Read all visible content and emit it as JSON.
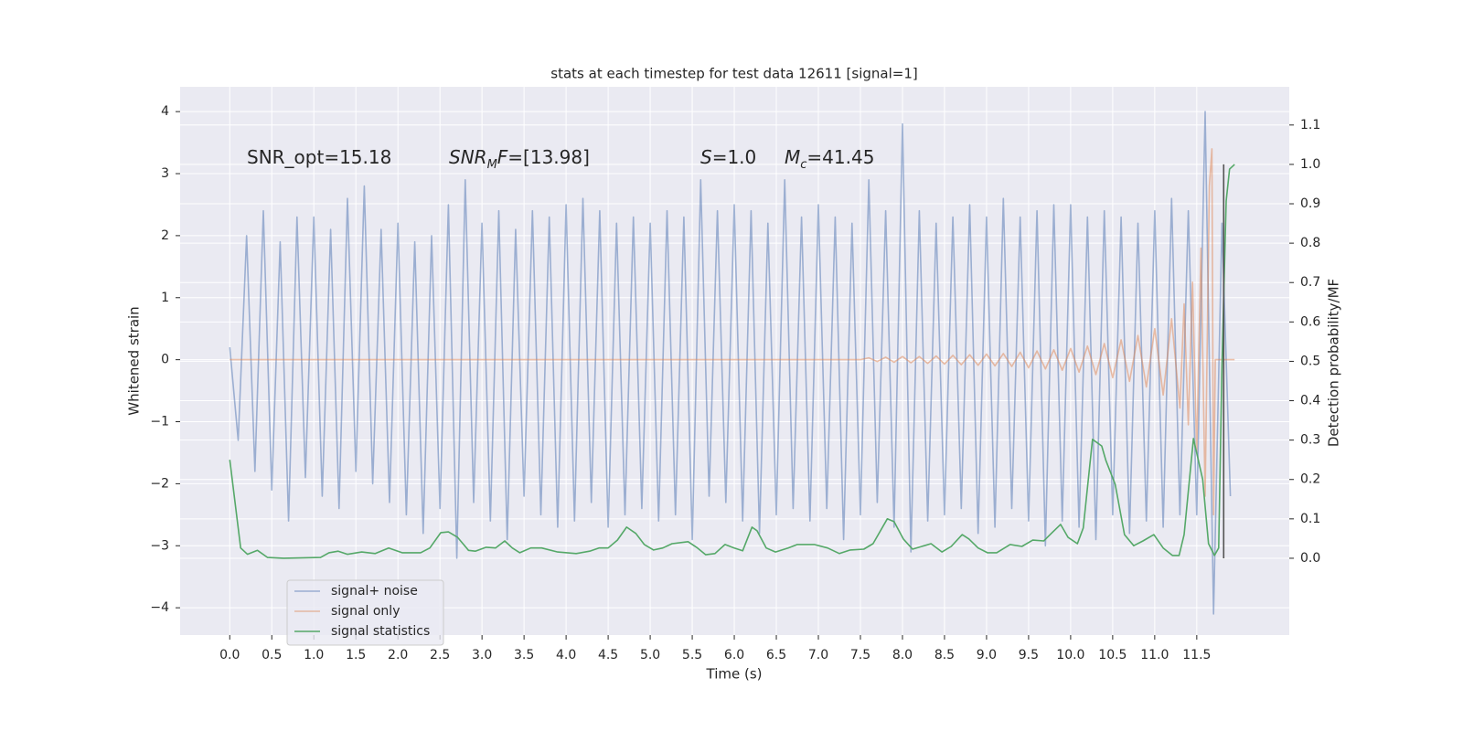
{
  "chart_data": {
    "type": "line",
    "title": "stats at each timestep for test data 12611 [signal=1]",
    "xlabel": "Time (s)",
    "ylabel": "Whitened strain",
    "y2label": "Detection probability/MF",
    "xlim": [
      -0.59,
      12.6
    ],
    "ylim": [
      -4.44,
      4.4
    ],
    "y2lim": [
      -0.195,
      1.197
    ],
    "xticks": [
      {
        "value": 0,
        "label": "0.0"
      },
      0.5,
      {
        "value": 1,
        "label": "1.0"
      },
      1.5,
      {
        "value": 2,
        "label": "2.0"
      },
      2.5,
      {
        "value": 3,
        "label": "3.0"
      },
      3.5,
      {
        "value": 4,
        "label": "4.0"
      },
      4.5,
      {
        "value": 5,
        "label": "5.0"
      },
      5.5,
      {
        "value": 6,
        "label": "6.0"
      },
      6.5,
      {
        "value": 7,
        "label": "7.0"
      },
      7.5,
      {
        "value": 8,
        "label": "8.0"
      },
      8.5,
      {
        "value": 9,
        "label": "9.0"
      },
      9.5,
      {
        "value": 10,
        "label": "10.0"
      },
      10.5,
      {
        "value": 11,
        "label": "11.0"
      },
      11.5
    ],
    "yticks": [
      {
        "value": -4,
        "label": "−4"
      },
      {
        "value": -3,
        "label": "−3"
      },
      {
        "value": -2,
        "label": "−2"
      },
      {
        "value": -1,
        "label": "−1"
      },
      0,
      1,
      2,
      3,
      4
    ],
    "y2ticks": [
      {
        "value": 0,
        "label": "0.0"
      },
      0.1,
      0.2,
      0.3,
      0.4,
      0.5,
      0.6,
      0.7,
      0.8,
      0.9,
      {
        "value": 1,
        "label": "1.0"
      },
      1.1
    ],
    "grid": true,
    "legend": "lower left",
    "annotations": [
      [
        {
          "text": "SNR_opt=15.18"
        }
      ],
      [
        {
          "text": "SNR",
          "italic": true
        },
        {
          "text": "M",
          "italic": true,
          "sub": true
        },
        {
          "text": "F",
          "italic": true
        },
        {
          "text": "=[13.98]"
        }
      ],
      [
        {
          "text": "S",
          "italic": true
        },
        {
          "text": "=1.0"
        }
      ],
      [
        {
          "text": "M",
          "italic": true
        },
        {
          "text": "c",
          "italic": true,
          "sub": true
        },
        {
          "text": "=41.45"
        }
      ]
    ],
    "threshold_line": {
      "x": 11.82,
      "y2": [
        0,
        1.0
      ],
      "color": "#555555"
    },
    "series": [
      {
        "name": "signal+ noise",
        "color": "#4c72b0",
        "opacity": 0.5,
        "x": [
          0,
          0.1,
          0.2,
          0.3,
          0.4,
          0.5,
          0.6,
          0.7,
          0.8,
          0.9,
          1,
          1.1,
          1.2,
          1.3,
          1.4,
          1.5,
          1.6,
          1.7,
          1.8,
          1.9,
          2,
          2.1,
          2.2,
          2.3,
          2.4,
          2.5,
          2.6,
          2.7,
          2.8,
          2.9,
          3,
          3.1,
          3.2,
          3.3,
          3.4,
          3.5,
          3.6,
          3.7,
          3.8,
          3.9,
          4,
          4.1,
          4.2,
          4.3,
          4.4,
          4.5,
          4.6,
          4.7,
          4.8,
          4.9,
          5,
          5.1,
          5.2,
          5.3,
          5.4,
          5.5,
          5.6,
          5.7,
          5.8,
          5.9,
          6,
          6.1,
          6.2,
          6.3,
          6.4,
          6.5,
          6.6,
          6.7,
          6.8,
          6.9,
          7,
          7.1,
          7.2,
          7.3,
          7.4,
          7.5,
          7.6,
          7.7,
          7.8,
          7.9,
          8,
          8.1,
          8.2,
          8.3,
          8.4,
          8.5,
          8.6,
          8.7,
          8.8,
          8.9,
          9,
          9.1,
          9.2,
          9.3,
          9.4,
          9.5,
          9.6,
          9.7,
          9.8,
          9.9,
          10,
          10.1,
          10.2,
          10.3,
          10.4,
          10.5,
          10.6,
          10.7,
          10.8,
          10.9,
          11,
          11.1,
          11.2,
          11.3,
          11.4,
          11.5,
          11.6,
          11.7,
          11.8,
          11.9
        ],
        "values": [
          0.2,
          -1.3,
          2.0,
          -1.8,
          2.4,
          -2.1,
          1.9,
          -2.6,
          2.3,
          -1.9,
          2.3,
          -2.2,
          2.1,
          -2.4,
          2.6,
          -1.8,
          2.8,
          -2.0,
          2.1,
          -2.3,
          2.2,
          -2.5,
          1.9,
          -2.8,
          2.0,
          -2.4,
          2.5,
          -3.2,
          2.9,
          -2.3,
          2.2,
          -2.6,
          2.4,
          -2.9,
          2.1,
          -2.2,
          2.4,
          -2.5,
          2.3,
          -2.7,
          2.5,
          -2.6,
          2.6,
          -2.3,
          2.4,
          -2.7,
          2.2,
          -2.5,
          2.3,
          -2.4,
          2.2,
          -2.6,
          2.4,
          -2.5,
          2.3,
          -2.9,
          2.9,
          -2.2,
          2.4,
          -2.3,
          2.5,
          -2.6,
          2.4,
          -2.8,
          2.2,
          -2.5,
          2.9,
          -2.4,
          2.3,
          -2.6,
          2.5,
          -2.4,
          2.3,
          -2.9,
          2.2,
          -2.5,
          2.9,
          -2.3,
          2.4,
          -2.7,
          3.8,
          -3.1,
          2.4,
          -2.6,
          2.2,
          -2.5,
          2.3,
          -2.4,
          2.5,
          -2.8,
          2.3,
          -2.7,
          2.6,
          -2.4,
          2.3,
          -2.6,
          2.4,
          -3.0,
          2.5,
          -2.6,
          2.5,
          -2.7,
          2.3,
          -2.9,
          2.4,
          -2.5,
          2.3,
          -2.8,
          2.2,
          -2.6,
          2.4,
          -2.7,
          2.6,
          -2.5,
          2.4,
          -2.5,
          4.0,
          -4.1,
          2.2,
          -2.2
        ]
      },
      {
        "name": "signal only",
        "color": "#dd8452",
        "opacity": 0.5,
        "x": [
          0,
          7.5,
          7.6,
          7.7,
          7.8,
          7.9,
          8.0,
          8.1,
          8.2,
          8.3,
          8.4,
          8.5,
          8.6,
          8.7,
          8.8,
          8.9,
          9.0,
          9.1,
          9.2,
          9.3,
          9.4,
          9.5,
          9.6,
          9.7,
          9.8,
          9.9,
          10.0,
          10.1,
          10.2,
          10.3,
          10.4,
          10.5,
          10.6,
          10.7,
          10.8,
          10.9,
          11.0,
          11.1,
          11.2,
          11.3,
          11.35,
          11.4,
          11.45,
          11.5,
          11.55,
          11.6,
          11.65,
          11.68,
          11.7,
          11.72,
          11.95
        ],
        "values": [
          0,
          0,
          0.03,
          -0.03,
          0.04,
          -0.04,
          0.05,
          -0.05,
          0.05,
          -0.06,
          0.06,
          -0.07,
          0.07,
          -0.08,
          0.08,
          -0.09,
          0.09,
          -0.1,
          0.1,
          -0.11,
          0.12,
          -0.13,
          0.14,
          -0.15,
          0.16,
          -0.17,
          0.18,
          -0.2,
          0.22,
          -0.24,
          0.26,
          -0.29,
          0.32,
          -0.35,
          0.39,
          -0.44,
          0.5,
          -0.57,
          0.66,
          -0.78,
          0.9,
          -1.05,
          1.25,
          -1.5,
          1.8,
          -2.2,
          2.8,
          3.4,
          -2.5,
          0,
          0
        ]
      },
      {
        "name": "signal statistics",
        "color": "#55a868",
        "axis": "y2",
        "x": [
          0,
          0.13,
          0.21,
          0.33,
          0.45,
          0.64,
          1.08,
          1.18,
          1.29,
          1.4,
          1.57,
          1.73,
          1.89,
          2.05,
          2.27,
          2.38,
          2.51,
          2.6,
          2.71,
          2.84,
          2.92,
          3.05,
          3.16,
          3.27,
          3.36,
          3.45,
          3.58,
          3.71,
          3.9,
          4.12,
          4.28,
          4.39,
          4.5,
          4.61,
          4.72,
          4.83,
          4.93,
          5.04,
          5.15,
          5.26,
          5.45,
          5.55,
          5.66,
          5.77,
          5.89,
          6.0,
          6.1,
          6.21,
          6.27,
          6.38,
          6.49,
          6.64,
          6.75,
          6.95,
          7.11,
          7.25,
          7.38,
          7.54,
          7.65,
          7.82,
          7.9,
          8.01,
          8.12,
          8.23,
          8.34,
          8.47,
          8.58,
          8.71,
          8.79,
          8.9,
          9.01,
          9.12,
          9.28,
          9.42,
          9.55,
          9.68,
          9.77,
          9.88,
          9.97,
          10.08,
          10.15,
          10.26,
          10.37,
          10.42,
          10.53,
          10.64,
          10.75,
          10.86,
          10.99,
          11.1,
          11.21,
          11.29,
          11.35,
          11.46,
          11.57,
          11.64,
          11.71,
          11.76,
          11.8,
          11.85,
          11.89,
          11.95
        ],
        "values": [
          0.25,
          0.026,
          0.01,
          0.02,
          0.002,
          0.0,
          0.002,
          0.014,
          0.018,
          0.01,
          0.016,
          0.012,
          0.026,
          0.014,
          0.014,
          0.026,
          0.065,
          0.067,
          0.053,
          0.02,
          0.018,
          0.028,
          0.026,
          0.044,
          0.026,
          0.014,
          0.026,
          0.026,
          0.016,
          0.012,
          0.018,
          0.026,
          0.026,
          0.046,
          0.079,
          0.063,
          0.035,
          0.021,
          0.026,
          0.037,
          0.042,
          0.028,
          0.009,
          0.012,
          0.035,
          0.026,
          0.019,
          0.079,
          0.07,
          0.026,
          0.016,
          0.026,
          0.035,
          0.035,
          0.026,
          0.012,
          0.021,
          0.023,
          0.037,
          0.1,
          0.093,
          0.049,
          0.023,
          0.03,
          0.037,
          0.016,
          0.03,
          0.06,
          0.049,
          0.026,
          0.014,
          0.014,
          0.035,
          0.03,
          0.046,
          0.044,
          0.063,
          0.086,
          0.053,
          0.037,
          0.077,
          0.302,
          0.285,
          0.248,
          0.188,
          0.06,
          0.032,
          0.044,
          0.06,
          0.026,
          0.007,
          0.007,
          0.06,
          0.304,
          0.2,
          0.037,
          0.007,
          0.026,
          0.49,
          0.907,
          0.988,
          1.0
        ]
      }
    ]
  }
}
